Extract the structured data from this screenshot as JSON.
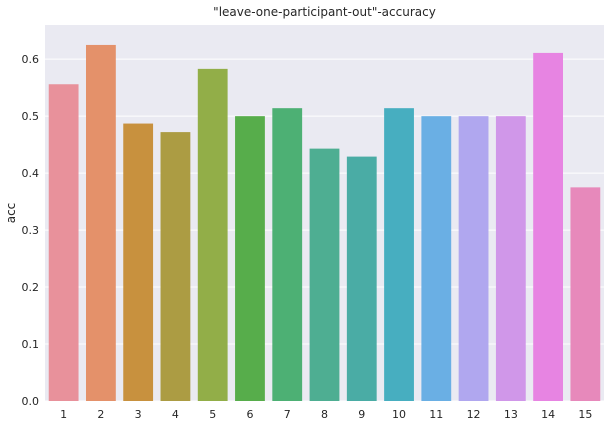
{
  "chart_data": {
    "type": "bar",
    "title": "\"leave-one-participant-out\"-accuracy",
    "xlabel": "",
    "ylabel": "acc",
    "categories": [
      "1",
      "2",
      "3",
      "4",
      "5",
      "6",
      "7",
      "8",
      "9",
      "10",
      "11",
      "12",
      "13",
      "14",
      "15"
    ],
    "values": [
      0.556,
      0.625,
      0.487,
      0.472,
      0.583,
      0.5,
      0.514,
      0.443,
      0.429,
      0.514,
      0.5,
      0.5,
      0.5,
      0.611,
      0.375
    ],
    "colors": [
      "#e8919b",
      "#e4916a",
      "#c8913e",
      "#ac9c43",
      "#92ae48",
      "#57ad4b",
      "#4db074",
      "#4eae92",
      "#4aaca5",
      "#47aec0",
      "#6aafe4",
      "#b0a7ef",
      "#d097e9",
      "#e784e2",
      "#e789bb"
    ],
    "ylim": [
      0,
      0.66
    ],
    "yticks": [
      "0.0",
      "0.1",
      "0.2",
      "0.3",
      "0.4",
      "0.5",
      "0.6"
    ],
    "grid": true,
    "background": "#eaeaf2",
    "grid_color": "#ffffff"
  }
}
